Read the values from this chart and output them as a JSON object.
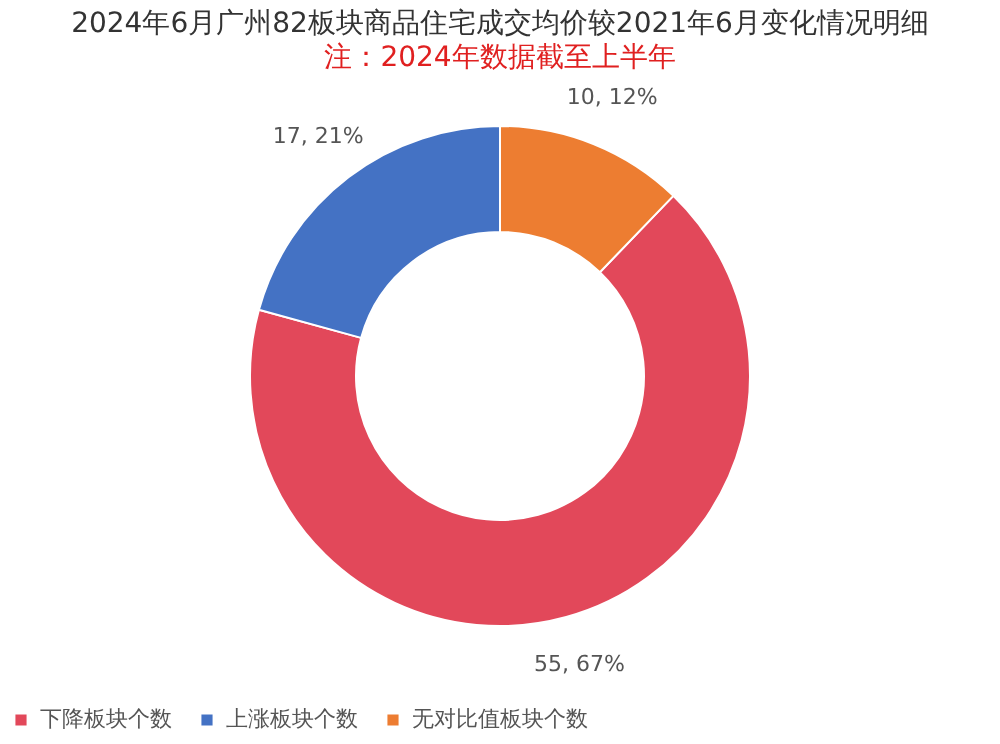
{
  "chart_data": {
    "type": "donut",
    "title": "2024年6月广州82板块商品住宅成交均价较2021年6月变化情况明细",
    "subtitle": "注：2024年数据截至上半年",
    "categories": [
      "下降板块个数",
      "上涨板块个数",
      "无对比值板块个数"
    ],
    "values": [
      55,
      17,
      10
    ],
    "colors": [
      "#e2485a",
      "#4472c4",
      "#ed7d31"
    ],
    "value_labels": [
      "55, 67%",
      "17, 21%",
      "10, 12%"
    ],
    "legend": "bottom"
  }
}
